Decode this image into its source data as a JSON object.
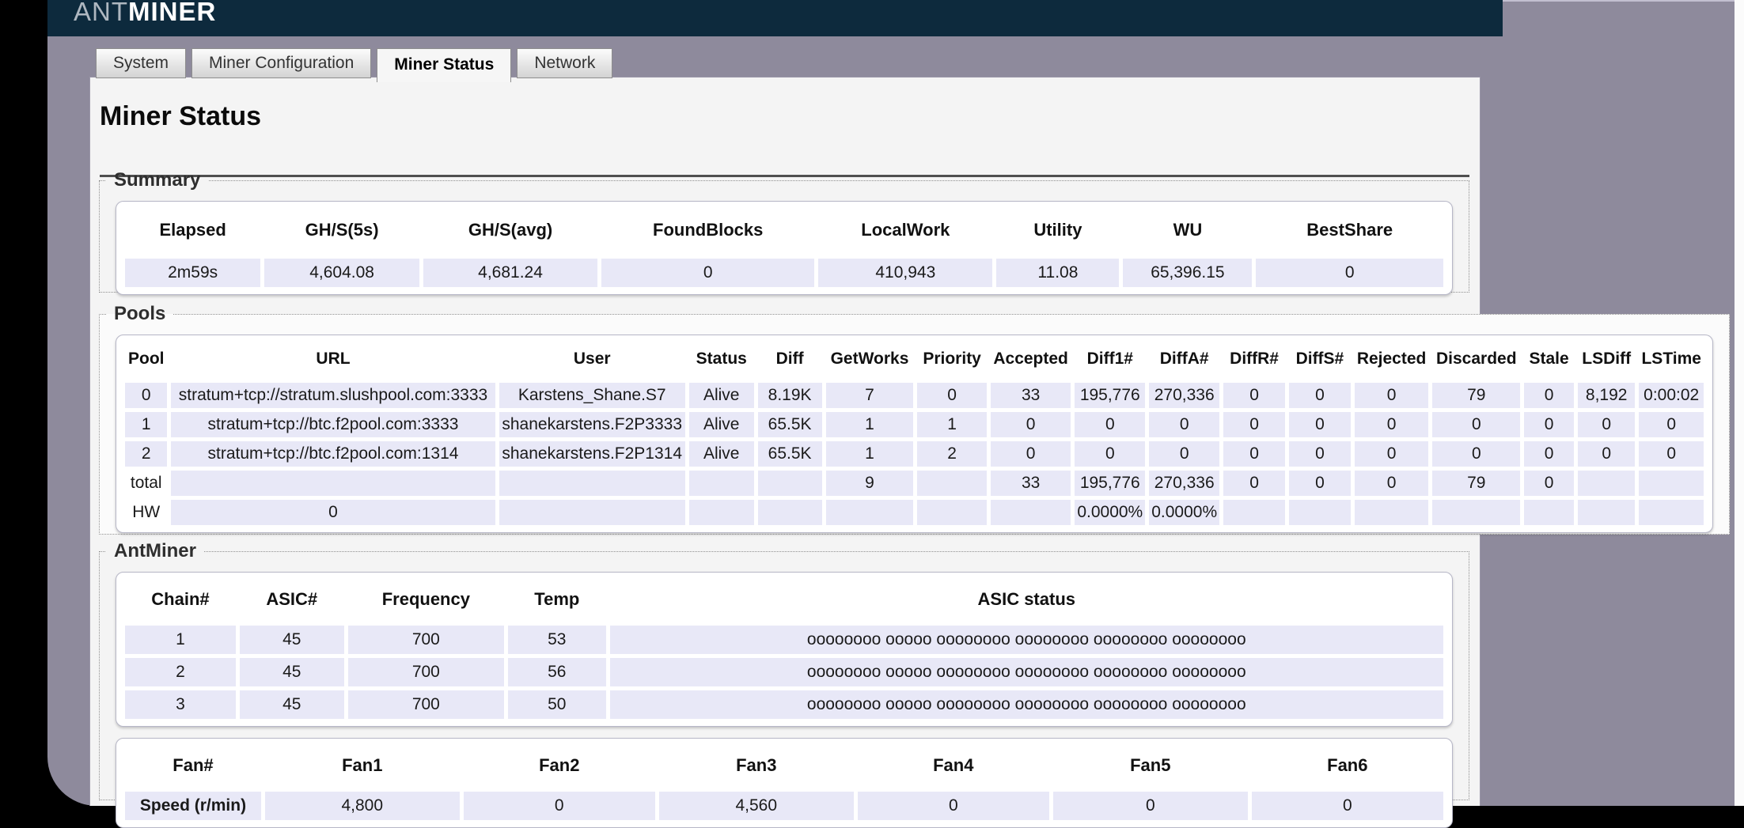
{
  "colors": {
    "header_bg": "#0d2a3d",
    "body_bg": "#8e8a9c",
    "cell_bg": "#e8e8f7",
    "panel_bg": "#f4f4f4"
  },
  "header": {
    "logo_ant": "ANT",
    "logo_miner": "MINER"
  },
  "tabs": [
    {
      "label": "System",
      "active": false
    },
    {
      "label": "Miner Configuration",
      "active": false
    },
    {
      "label": "Miner Status",
      "active": true
    },
    {
      "label": "Network",
      "active": false
    }
  ],
  "page": {
    "title": "Miner Status"
  },
  "summary": {
    "legend": "Summary",
    "table": {
      "columns": [
        "Elapsed",
        "GH/S(5s)",
        "GH/S(avg)",
        "FoundBlocks",
        "LocalWork",
        "Utility",
        "WU",
        "BestShare"
      ],
      "widths": [
        "10.5%",
        "12%",
        "13.5%",
        "16.5%",
        "13.5%",
        "9.5%",
        "10%",
        "14.5%"
      ],
      "rows": [
        {
          "cells": [
            "2m59s",
            "4,604.08",
            "4,681.24",
            "0",
            "410,943",
            "11.08",
            "65,396.15",
            "0"
          ]
        }
      ]
    }
  },
  "pools": {
    "legend": "Pools",
    "table": {
      "columns": [
        "Pool",
        "URL",
        "User",
        "Status",
        "Diff",
        "GetWorks",
        "Priority",
        "Accepted",
        "Diff1#",
        "DiffA#",
        "DiffR#",
        "DiffS#",
        "Rejected",
        "Discarded",
        "Stale",
        "LSDiff",
        "LSTime"
      ],
      "widths": [
        "2.8%",
        "21.4%",
        "12.3%",
        "4.3%",
        "4.3%",
        "5.8%",
        "4.6%",
        "5.3%",
        "4.6%",
        "4.6%",
        "4.1%",
        "4.1%",
        "4.8%",
        "5.8%",
        "3.3%",
        "3.8%",
        "4.3%"
      ],
      "rows": [
        {
          "cells": [
            "0",
            "stratum+tcp://stratum.slushpool.com:3333",
            "Karstens_Shane.S7",
            "Alive",
            "8.19K",
            "7",
            "0",
            "33",
            "195,776",
            "270,336",
            "0",
            "0",
            "0",
            "79",
            "0",
            "8,192",
            "0:00:02"
          ]
        },
        {
          "cells": [
            "1",
            "stratum+tcp://btc.f2pool.com:3333",
            "shanekarstens.F2P3333",
            "Alive",
            "65.5K",
            "1",
            "1",
            "0",
            "0",
            "0",
            "0",
            "0",
            "0",
            "0",
            "0",
            "0",
            "0"
          ]
        },
        {
          "cells": [
            "2",
            "stratum+tcp://btc.f2pool.com:1314",
            "shanekarstens.F2P1314",
            "Alive",
            "65.5K",
            "1",
            "2",
            "0",
            "0",
            "0",
            "0",
            "0",
            "0",
            "0",
            "0",
            "0",
            "0"
          ]
        },
        {
          "cells": [
            "total",
            "",
            "",
            "",
            "",
            "9",
            "",
            "33",
            "195,776",
            "270,336",
            "0",
            "0",
            "0",
            "79",
            "0",
            "",
            ""
          ],
          "first_plain": true
        },
        {
          "cells": [
            "HW",
            "0",
            "",
            "",
            "",
            "",
            "",
            "",
            "0.0000%",
            "0.0000%",
            "",
            "",
            "",
            "",
            "",
            "",
            ""
          ],
          "first_plain": true
        }
      ]
    }
  },
  "antminer": {
    "legend": "AntMiner",
    "chains": {
      "columns": [
        "Chain#",
        "ASIC#",
        "Frequency",
        "Temp",
        "ASIC status"
      ],
      "widths": [
        "8.5%",
        "8%",
        "12%",
        "7.5%",
        "64%"
      ],
      "rows": [
        {
          "cells": [
            "1",
            "45",
            "700",
            "53",
            "oooooooo ooooo oooooooo oooooooo oooooooo oooooooo"
          ]
        },
        {
          "cells": [
            "2",
            "45",
            "700",
            "56",
            "oooooooo ooooo oooooooo oooooooo oooooooo oooooooo"
          ]
        },
        {
          "cells": [
            "3",
            "45",
            "700",
            "50",
            "oooooooo ooooo oooooooo oooooooo oooooooo oooooooo"
          ]
        }
      ]
    },
    "fans": {
      "columns": [
        "Fan#",
        "Fan1",
        "Fan2",
        "Fan3",
        "Fan4",
        "Fan5",
        "Fan6"
      ],
      "widths": [
        "10.5%",
        "15%",
        "14.8%",
        "15%",
        "14.8%",
        "15%",
        "14.8%"
      ],
      "rows": [
        {
          "cells": [
            "Speed (r/min)",
            "4,800",
            "0",
            "4,560",
            "0",
            "0",
            "0"
          ],
          "first_bold": true
        }
      ]
    }
  }
}
